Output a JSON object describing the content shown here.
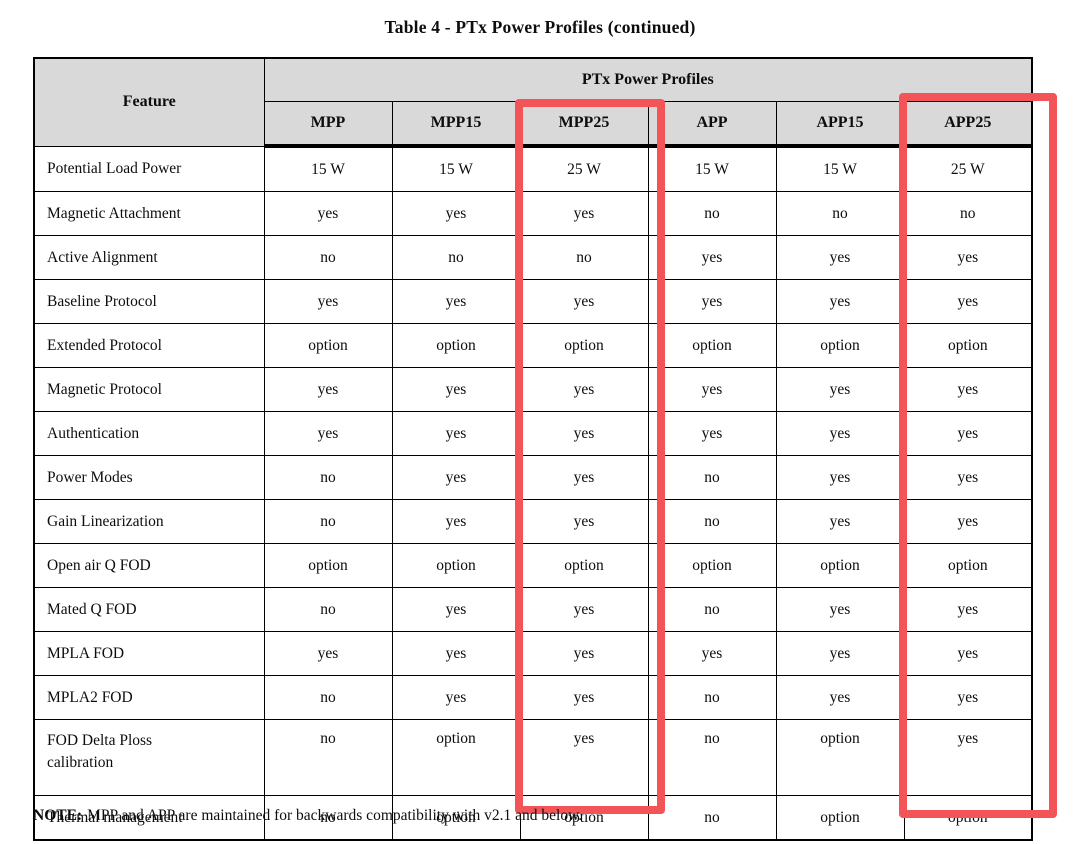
{
  "title": "Table 4 - PTx Power Profiles (continued)",
  "table": {
    "feature_header": "Feature",
    "group_header": "PTx Power Profiles",
    "columns": [
      "MPP",
      "MPP15",
      "MPP25",
      "APP",
      "APP15",
      "APP25"
    ],
    "highlighted_columns": [
      "MPP25",
      "APP25"
    ],
    "rows": [
      {
        "feature": "Potential Load Power",
        "values": [
          "15 W",
          "15 W",
          "25 W",
          "15 W",
          "15 W",
          "25 W"
        ]
      },
      {
        "feature": "Magnetic Attachment",
        "values": [
          "yes",
          "yes",
          "yes",
          "no",
          "no",
          "no"
        ]
      },
      {
        "feature": "Active Alignment",
        "values": [
          "no",
          "no",
          "no",
          "yes",
          "yes",
          "yes"
        ]
      },
      {
        "feature": "Baseline Protocol",
        "values": [
          "yes",
          "yes",
          "yes",
          "yes",
          "yes",
          "yes"
        ]
      },
      {
        "feature": "Extended Protocol",
        "values": [
          "option",
          "option",
          "option",
          "option",
          "option",
          "option"
        ]
      },
      {
        "feature": "Magnetic Protocol",
        "values": [
          "yes",
          "yes",
          "yes",
          "yes",
          "yes",
          "yes"
        ]
      },
      {
        "feature": "Authentication",
        "values": [
          "yes",
          "yes",
          "yes",
          "yes",
          "yes",
          "yes"
        ]
      },
      {
        "feature": "Power Modes",
        "values": [
          "no",
          "yes",
          "yes",
          "no",
          "yes",
          "yes"
        ]
      },
      {
        "feature": "Gain Linearization",
        "values": [
          "no",
          "yes",
          "yes",
          "no",
          "yes",
          "yes"
        ]
      },
      {
        "feature": "Open air Q FOD",
        "values": [
          "option",
          "option",
          "option",
          "option",
          "option",
          "option"
        ]
      },
      {
        "feature": "Mated Q FOD",
        "values": [
          "no",
          "yes",
          "yes",
          "no",
          "yes",
          "yes"
        ]
      },
      {
        "feature": "MPLA FOD",
        "values": [
          "yes",
          "yes",
          "yes",
          "yes",
          "yes",
          "yes"
        ]
      },
      {
        "feature": "MPLA2 FOD",
        "values": [
          "no",
          "yes",
          "yes",
          "no",
          "yes",
          "yes"
        ]
      },
      {
        "feature": "FOD Delta Ploss calibration",
        "values": [
          "no",
          "option",
          "yes",
          "no",
          "option",
          "yes"
        ]
      },
      {
        "feature": "Thermal management",
        "values": [
          "no",
          "option",
          "option",
          "no",
          "option",
          "option"
        ]
      }
    ],
    "tall_row_feature": "FOD Delta Ploss calibration"
  },
  "note": {
    "label": "NOTE:",
    "text": "MPP and APP are maintained for backwards compatibility with v2.1 and below."
  },
  "colors": {
    "highlight": "#f25458",
    "header_bg": "#d9d9d9",
    "border": "#000000"
  }
}
